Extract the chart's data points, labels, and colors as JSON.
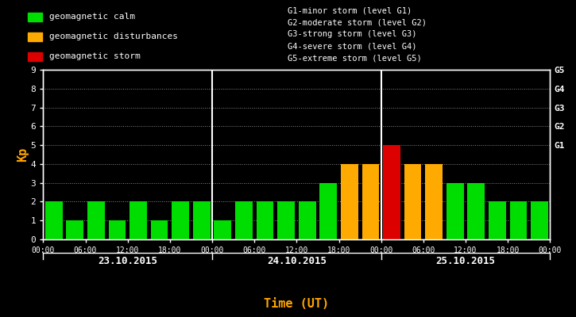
{
  "background_color": "#000000",
  "bar_values": [
    2,
    1,
    2,
    1,
    2,
    1,
    2,
    2,
    1,
    2,
    2,
    2,
    2,
    3,
    4,
    4,
    5,
    4,
    4,
    3,
    3,
    2,
    2,
    2
  ],
  "bar_colors": [
    "#00dd00",
    "#00dd00",
    "#00dd00",
    "#00dd00",
    "#00dd00",
    "#00dd00",
    "#00dd00",
    "#00dd00",
    "#00dd00",
    "#00dd00",
    "#00dd00",
    "#00dd00",
    "#00dd00",
    "#00dd00",
    "#ffaa00",
    "#ffaa00",
    "#dd0000",
    "#ffaa00",
    "#ffaa00",
    "#00dd00",
    "#00dd00",
    "#00dd00",
    "#00dd00",
    "#00dd00"
  ],
  "ylim": [
    0,
    9
  ],
  "yticks": [
    0,
    1,
    2,
    3,
    4,
    5,
    6,
    7,
    8,
    9
  ],
  "right_ytick_positions": [
    5,
    6,
    7,
    8,
    9
  ],
  "right_ytick_texts": [
    "G1",
    "G2",
    "G3",
    "G4",
    "G5"
  ],
  "day1_label": "23.10.2015",
  "day2_label": "24.10.2015",
  "day3_label": "25.10.2015",
  "xlabel": "Time (UT)",
  "ylabel": "Kp",
  "xtick_labels": [
    "00:00",
    "06:00",
    "12:00",
    "18:00",
    "00:00",
    "06:00",
    "12:00",
    "18:00",
    "00:00",
    "06:00",
    "12:00",
    "18:00",
    "00:00"
  ],
  "legend_items": [
    {
      "label": "geomagnetic calm",
      "color": "#00dd00"
    },
    {
      "label": "geomagnetic disturbances",
      "color": "#ffaa00"
    },
    {
      "label": "geomagnetic storm",
      "color": "#dd0000"
    }
  ],
  "storm_texts": [
    "G1-minor storm (level G1)",
    "G2-moderate storm (level G2)",
    "G3-strong storm (level G3)",
    "G4-severe storm (level G4)",
    "G5-extreme storm (level G5)"
  ],
  "text_color": "#ffffff",
  "xlabel_color": "#ffa500",
  "ylabel_color": "#ffa500",
  "grid_color": "#444444",
  "divider_color": "#ffffff",
  "bar_width": 0.82,
  "n_bars": 24,
  "bars_per_day": 8
}
